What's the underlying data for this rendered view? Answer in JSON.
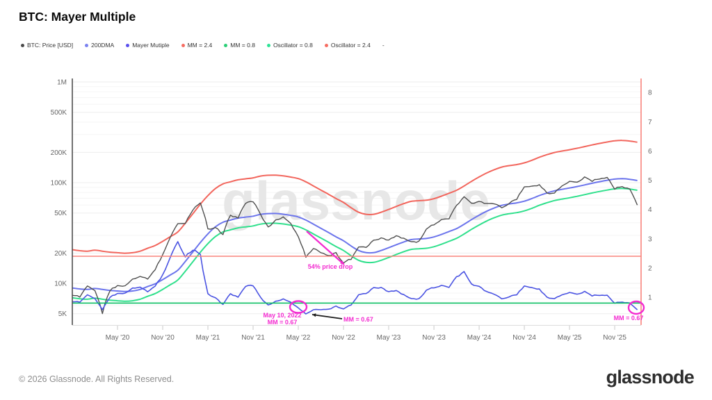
{
  "title": "BTC: Mayer Multiple",
  "watermark": "glassnode",
  "legend": {
    "items": [
      {
        "label": "BTC: Price [USD]",
        "color": "#4a4a4a"
      },
      {
        "label": "200DMA",
        "color": "#7b82f0"
      },
      {
        "label": "Mayer Mutiple",
        "color": "#5b50ee"
      },
      {
        "label": "MM = 2.4",
        "color": "#f66d62"
      },
      {
        "label": "MM = 0.8",
        "color": "#2bcf77"
      },
      {
        "label": "Oscillator = 0.8",
        "color": "#2de396"
      },
      {
        "label": "Oscillator = 2.4",
        "color": "#f66d62"
      },
      {
        "label": "-",
        "color": null
      }
    ]
  },
  "footer": {
    "copyright": "© 2026 Glassnode. All Rights Reserved.",
    "brand": "glassnode"
  },
  "chart_data": {
    "type": "line",
    "x_start": "Nov 2019",
    "x_interval_months": 1,
    "x_ticks": [
      {
        "i": 6,
        "label": "May '20"
      },
      {
        "i": 12,
        "label": "Nov '20"
      },
      {
        "i": 18,
        "label": "May '21"
      },
      {
        "i": 24,
        "label": "Nov '21"
      },
      {
        "i": 30,
        "label": "May '22"
      },
      {
        "i": 36,
        "label": "Nov '22"
      },
      {
        "i": 42,
        "label": "May '23"
      },
      {
        "i": 48,
        "label": "Nov '23"
      },
      {
        "i": 54,
        "label": "May '24"
      },
      {
        "i": 60,
        "label": "Nov '24"
      },
      {
        "i": 66,
        "label": "May '25"
      },
      {
        "i": 72,
        "label": "Nov '25"
      }
    ],
    "y_left": {
      "scale": "log",
      "unit": "USD",
      "lim": [
        3860,
        1083000
      ],
      "ticks": [
        {
          "v": 1000000,
          "label": "1M"
        },
        {
          "v": 500000,
          "label": "500K"
        },
        {
          "v": 200000,
          "label": "200K"
        },
        {
          "v": 100000,
          "label": "100K"
        },
        {
          "v": 50000,
          "label": "50K"
        },
        {
          "v": 20000,
          "label": "20K"
        },
        {
          "v": 10000,
          "label": "10K"
        },
        {
          "v": 5000,
          "label": "5K"
        }
      ],
      "minor_gridlines": [
        6000,
        7000,
        8000,
        9000,
        30000,
        40000,
        60000,
        70000,
        80000,
        90000,
        300000,
        400000,
        600000,
        700000,
        800000,
        900000
      ]
    },
    "y_right": {
      "scale": "linear",
      "lim": [
        0.05,
        8.48
      ],
      "ticks": [
        1,
        2,
        3,
        4,
        5,
        6,
        7,
        8
      ]
    },
    "series": [
      {
        "name": "BTC: Price [USD]",
        "axis": "left",
        "color": "#4f4f4f",
        "width": 1.4,
        "style": "noisy",
        "values_kusd": [
          7.6,
          7.3,
          9.4,
          8.6,
          5.0,
          8.6,
          9.5,
          9.1,
          11.0,
          11.7,
          10.8,
          13.8,
          19.7,
          29.0,
          40.0,
          42.0,
          55.0,
          63.0,
          35.0,
          35.0,
          30.0,
          47.2,
          43.8,
          61.3,
          66.0,
          46.2,
          36.0,
          43.2,
          45.5,
          38.6,
          30.0,
          18.5,
          23.3,
          20.0,
          19.4,
          20.5,
          16.0,
          16.8,
          23.1,
          23.5,
          28.5,
          29.2,
          27.2,
          30.5,
          29.2,
          26.0,
          26.9,
          34.7,
          37.7,
          42.3,
          43.0,
          61.2,
          73.0,
          63.0,
          67.5,
          62.7,
          64.6,
          59.0,
          63.3,
          70.2,
          96.0,
          97.0,
          102.0,
          84.3,
          82.5,
          94.2,
          104.6,
          107.1,
          117.0,
          109.0,
          114.0,
          122.0,
          91.0,
          97.0,
          92.0,
          66.0
        ]
      },
      {
        "name": "200DMA",
        "axis": "left",
        "color": "#6b74ec",
        "width": 2,
        "style": "smooth",
        "values_kusd": [
          9.0,
          8.8,
          8.7,
          8.9,
          8.7,
          8.5,
          8.4,
          8.3,
          8.4,
          8.7,
          9.3,
          9.9,
          10.9,
          12.1,
          13.5,
          16.5,
          20.5,
          25.5,
          31.0,
          36.5,
          40.5,
          42.5,
          44.5,
          45.5,
          46.5,
          48.5,
          49.3,
          49.4,
          48.6,
          47.3,
          45.7,
          42.5,
          38.7,
          35.2,
          32.0,
          29.0,
          26.5,
          23.5,
          21.2,
          20.2,
          20.2,
          21.2,
          22.6,
          24.2,
          25.8,
          27.2,
          27.6,
          27.9,
          28.9,
          30.6,
          32.7,
          35.0,
          38.6,
          43.0,
          47.5,
          52.0,
          56.0,
          59.5,
          61.5,
          63.0,
          65.5,
          69.5,
          74.5,
          79.0,
          83.0,
          85.8,
          88.5,
          91.5,
          95.0,
          98.7,
          102.3,
          105.6,
          108.5,
          109.5,
          108.0,
          105.0
        ]
      },
      {
        "name": "MM = 2.4",
        "axis": "left",
        "color": "#f2655c",
        "width": 2,
        "style": "smooth",
        "derived_from": "200DMA",
        "multiplier": 2.4
      },
      {
        "name": "MM = 0.8",
        "axis": "left",
        "color": "#2fe08c",
        "width": 2,
        "style": "smooth",
        "derived_from": "200DMA",
        "multiplier": 0.8
      },
      {
        "name": "Mayer Mutiple",
        "axis": "right",
        "color": "#4a53e2",
        "width": 1.6,
        "style": "noisy",
        "derived": "price_divided_by_200dma"
      },
      {
        "name": "Oscillator = 0.8",
        "axis": "right",
        "color": "#0bbf62",
        "width": 1.6,
        "style": "hline",
        "value": 0.8
      },
      {
        "name": "Oscillator = 2.4",
        "axis": "right",
        "color": "#f8837b",
        "width": 1.6,
        "style": "hline",
        "value": 2.4
      }
    ],
    "annotations": [
      {
        "type": "arrow",
        "color": "#f32ad0",
        "width": 2.2,
        "x1": 441,
        "y1": 333,
        "x2": 495,
        "y2": 381
      },
      {
        "type": "label",
        "text": "54% price drop",
        "color": "#f32ad0",
        "x": 475,
        "y": 387,
        "anchor": "middle"
      },
      {
        "type": "ellipse",
        "color": "#f32ad0",
        "cx": 429,
        "cy": 442,
        "rx": 12,
        "ry": 8.5
      },
      {
        "type": "label",
        "text": "May 10, 2022",
        "color": "#f32ad0",
        "x": 406,
        "y": 457,
        "anchor": "middle"
      },
      {
        "type": "label",
        "text": "MM = 0.67",
        "color": "#f32ad0",
        "x": 406,
        "y": 467,
        "anchor": "middle"
      },
      {
        "type": "arrow",
        "color": "#1a1a1a",
        "width": 1.8,
        "x1": 492,
        "y1": 459,
        "x2": 449,
        "y2": 453
      },
      {
        "type": "label",
        "text": "MM = 0.67",
        "color": "#f32ad0",
        "x": 494,
        "y": 463,
        "anchor": "start"
      },
      {
        "type": "ellipse",
        "color": "#f32ad0",
        "cx": 915,
        "cy": 443,
        "rx": 11,
        "ry": 9
      },
      {
        "type": "label",
        "text": "MM = 0.67",
        "color": "#f32ad0",
        "x": 904,
        "y": 461,
        "anchor": "middle"
      }
    ],
    "axis_colors": {
      "left_axis_line": "#4d4d4d",
      "right_axis_line": "#f8837b",
      "tick_label": "#666666"
    }
  }
}
